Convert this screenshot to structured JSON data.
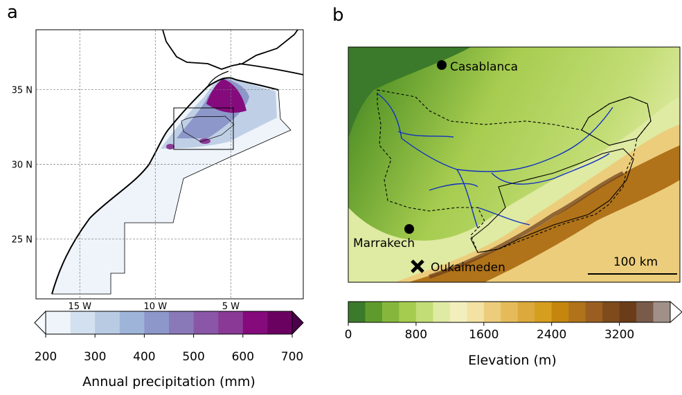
{
  "panel_a": {
    "label": "a",
    "lon_lim": [
      -17.9,
      -0.2
    ],
    "lat_lim": [
      21,
      39
    ],
    "lon_ticks": [
      {
        "value": -15,
        "label": "15  W"
      },
      {
        "value": -10,
        "label": "10  W"
      },
      {
        "value": -5,
        "label": "5  W"
      }
    ],
    "lat_ticks": [
      {
        "value": 35,
        "label": "35  N"
      },
      {
        "value": 30,
        "label": "30  N"
      },
      {
        "value": 25,
        "label": "25  N"
      }
    ],
    "colorbar": {
      "label": "Annual precipitation (mm)",
      "lim": [
        200,
        700
      ],
      "ticks": [
        200,
        300,
        400,
        500,
        600,
        700
      ],
      "colors": [
        "#eef4fa",
        "#d3e0ef",
        "#b9cbe3",
        "#9fb4d9",
        "#8d97c9",
        "#8a79b9",
        "#8a57a8",
        "#8a3a96",
        "#850b7d",
        "#6a0060"
      ],
      "extend_colors": [
        "#f7fbff",
        "#4d004b"
      ]
    }
  },
  "panel_b": {
    "label": "b",
    "places": [
      "Casablanca",
      "Marrakech",
      "Oukaimeden"
    ],
    "scale_bar": "100 km",
    "colorbar": {
      "label": "Elevation (m)",
      "lim": [
        0,
        3800
      ],
      "ticks": [
        0,
        800,
        1600,
        2400,
        3200
      ],
      "colors": [
        "#3b7a2a",
        "#5f9b2c",
        "#86b73c",
        "#a6cc4f",
        "#c2dd75",
        "#dfeaa2",
        "#f3efbd",
        "#f3e2a4",
        "#eccd7c",
        "#e5bb5a",
        "#dba93c",
        "#d69e1e",
        "#c4860f",
        "#b0731a",
        "#9a5f20",
        "#7f4b1c",
        "#6b3c18",
        "#7a5b4a",
        "#a09088"
      ],
      "extend_colors": [
        "#ffffff"
      ]
    }
  }
}
